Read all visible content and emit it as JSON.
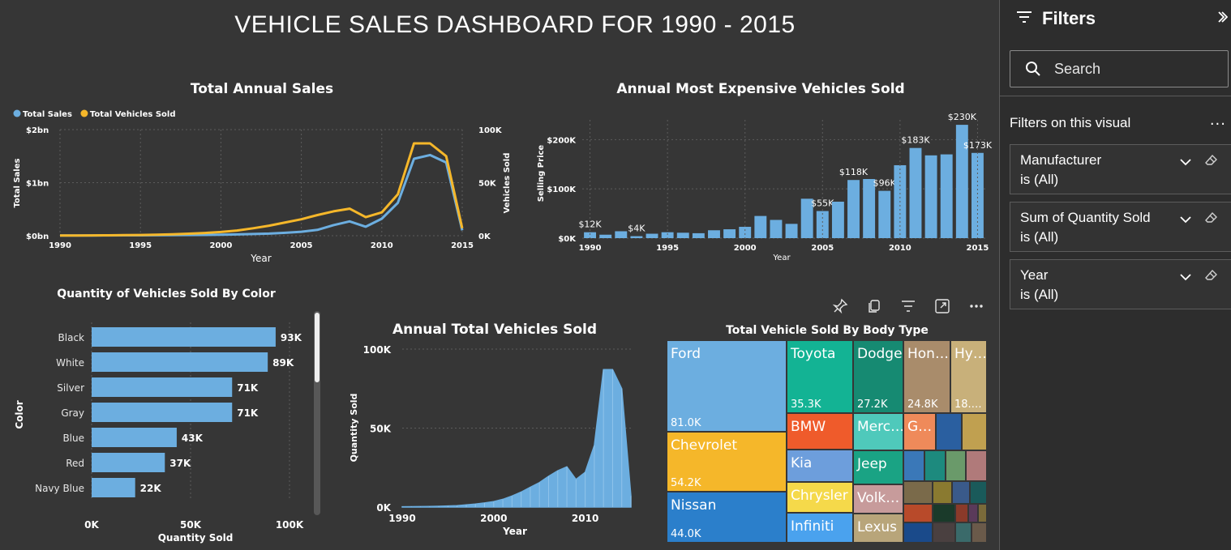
{
  "dashboard": {
    "title": "VEHICLE SALES DASHBOARD  FOR 1990 - 2015"
  },
  "filters_pane": {
    "title": "Filters",
    "search_placeholder": "Search",
    "section_label": "Filters on this visual",
    "more_label": "...",
    "cards": [
      {
        "field": "Manufacturer",
        "value": "is (All)"
      },
      {
        "field": "Sum of Quantity Sold",
        "value": "is (All)"
      },
      {
        "field": "Year",
        "value": "is (All)"
      }
    ]
  },
  "icons": [
    "filter-lines-icon",
    "collapse-chevron-icon",
    "search-icon",
    "chevron-down-icon",
    "eraser-icon",
    "pin-icon",
    "copy-icon",
    "filter-icon",
    "focus-mode-icon",
    "more-options-icon"
  ],
  "colors": {
    "blue": "#6caee0",
    "orange": "#f5b72a",
    "background": "#363636",
    "pane": "#2d2d2d"
  },
  "chart_data": [
    {
      "id": "total_annual_sales",
      "type": "line",
      "title": "Total Annual Sales",
      "xlabel": "Year",
      "ylabel": "Total Sales",
      "y2label": "Vehicles Sold",
      "legend_position": "top-left",
      "xlim": [
        1990,
        2015
      ],
      "ylim": [
        0,
        2
      ],
      "y2lim": [
        0,
        100000
      ],
      "x_ticks": [
        "1990",
        "1995",
        "2000",
        "2005",
        "2010",
        "2015"
      ],
      "y_ticks": [
        "$0bn",
        "$1bn",
        "$2bn"
      ],
      "y2_ticks": [
        "0K",
        "50K",
        "100K"
      ],
      "x": [
        1990,
        1991,
        1992,
        1993,
        1994,
        1995,
        1996,
        1997,
        1998,
        1999,
        2000,
        2001,
        2002,
        2003,
        2004,
        2005,
        2006,
        2007,
        2008,
        2009,
        2010,
        2011,
        2012,
        2013,
        2014,
        2015
      ],
      "series": [
        {
          "name": "Total Sales",
          "axis": "left",
          "color": "#6caee0",
          "values": [
            0.005,
            0.005,
            0.005,
            0.006,
            0.007,
            0.008,
            0.009,
            0.011,
            0.013,
            0.016,
            0.02,
            0.025,
            0.032,
            0.04,
            0.055,
            0.075,
            0.11,
            0.2,
            0.27,
            0.17,
            0.32,
            0.62,
            1.45,
            1.52,
            1.38,
            0.1
          ]
        },
        {
          "name": "Total Vehicles Sold",
          "axis": "right",
          "color": "#f5b72a",
          "values": [
            200,
            250,
            300,
            400,
            500,
            700,
            900,
            1400,
            1900,
            2600,
            3500,
            4900,
            7000,
            9500,
            12500,
            15500,
            19500,
            23000,
            25500,
            17500,
            22000,
            39000,
            87000,
            87000,
            75000,
            7000
          ]
        }
      ]
    },
    {
      "id": "annual_most_expensive",
      "type": "bar",
      "title": "Annual Most Expensive Vehicles Sold",
      "xlabel": "Year",
      "ylabel": "Selling Price",
      "ylim": [
        0,
        240000
      ],
      "y_ticks": [
        "$0K",
        "$100K",
        "$200K"
      ],
      "x_ticks": [
        "1990",
        "1995",
        "2000",
        "2005",
        "2010",
        "2015"
      ],
      "color": "#6caee0",
      "categories": [
        "1990",
        "1991",
        "1992",
        "1993",
        "1994",
        "1995",
        "1996",
        "1997",
        "1998",
        "1999",
        "2000",
        "2001",
        "2002",
        "2003",
        "2004",
        "2005",
        "2006",
        "2007",
        "2008",
        "2009",
        "2010",
        "2011",
        "2012",
        "2013",
        "2014",
        "2015"
      ],
      "values": [
        12000,
        7000,
        14000,
        4000,
        9000,
        12000,
        11000,
        10000,
        16000,
        18000,
        23000,
        45000,
        37000,
        29000,
        80000,
        55000,
        74000,
        118000,
        120000,
        96000,
        148000,
        183000,
        168000,
        170000,
        230000,
        173000
      ],
      "data_labels": {
        "1990": "$12K",
        "1993": "$4K",
        "2005": "$55K",
        "2007": "$118K",
        "2009": "$96K",
        "2011": "$183K",
        "2014": "$230K",
        "2015": "$173K"
      }
    },
    {
      "id": "sold_by_color",
      "type": "bar",
      "orientation": "horizontal",
      "title": "Quantity of Vehicles Sold By Color",
      "xlabel": "Quantity Sold",
      "ylabel": "Color",
      "xlim": [
        0,
        100000
      ],
      "x_ticks": [
        "0K",
        "50K",
        "100K"
      ],
      "color": "#6caee0",
      "categories": [
        "Black",
        "White",
        "Silver",
        "Gray",
        "Blue",
        "Red",
        "Navy Blue"
      ],
      "values": [
        93000,
        89000,
        71000,
        71000,
        43000,
        37000,
        22000
      ],
      "data_labels": [
        "93K",
        "89K",
        "71K",
        "71K",
        "43K",
        "37K",
        "22K"
      ]
    },
    {
      "id": "annual_total_vehicles",
      "type": "area",
      "title": "Annual Total Vehicles Sold",
      "xlabel": "Year",
      "ylabel": "Quantity Sold",
      "xlim": [
        1990,
        2015
      ],
      "ylim": [
        0,
        100000
      ],
      "y_ticks": [
        "0K",
        "50K",
        "100K"
      ],
      "x_ticks": [
        "1990",
        "2000",
        "2010"
      ],
      "color": "#6caee0",
      "x": [
        1990,
        1991,
        1992,
        1993,
        1994,
        1995,
        1996,
        1997,
        1998,
        1999,
        2000,
        2001,
        2002,
        2003,
        2004,
        2005,
        2006,
        2007,
        2008,
        2009,
        2010,
        2011,
        2012,
        2013,
        2014,
        2015
      ],
      "values": [
        200,
        250,
        300,
        400,
        500,
        700,
        900,
        1400,
        1900,
        2600,
        3500,
        4900,
        7000,
        9500,
        12500,
        15500,
        19500,
        23000,
        25500,
        17500,
        22000,
        39000,
        87000,
        87000,
        75000,
        7000
      ]
    },
    {
      "id": "sold_by_body_type",
      "type": "treemap",
      "title": "Total Vehicle Sold By Body Type",
      "items": [
        {
          "name": "Ford",
          "value": "81.0K",
          "color": "#6caee0"
        },
        {
          "name": "Chevrolet",
          "value": "54.2K",
          "color": "#f5b72a"
        },
        {
          "name": "Nissan",
          "value": "44.0K",
          "color": "#2b7fcb"
        },
        {
          "name": "Toyota",
          "value": "35.3K",
          "color": "#13b394"
        },
        {
          "name": "Dodge",
          "value": "27.2K",
          "color": "#168a72"
        },
        {
          "name": "Hon…",
          "value": "24.8K",
          "color": "#a98c6b"
        },
        {
          "name": "Hy…",
          "value": "18.…",
          "color": "#c8b07a"
        },
        {
          "name": "BMW",
          "value": "",
          "color": "#ef5b2b"
        },
        {
          "name": "Merc…",
          "value": "",
          "color": "#4fc9bb"
        },
        {
          "name": "G…",
          "value": "",
          "color": "#ef8a5a"
        },
        {
          "name": "Kia",
          "value": "",
          "color": "#6d9edc"
        },
        {
          "name": "Jeep",
          "value": "",
          "color": "#1aa384"
        },
        {
          "name": "Chrysler",
          "value": "",
          "color": "#f5d94a"
        },
        {
          "name": "Volk…",
          "value": "",
          "color": "#c79b9b"
        },
        {
          "name": "Infiniti",
          "value": "",
          "color": "#4aa2ee"
        },
        {
          "name": "Lexus",
          "value": "",
          "color": "#b8a57a"
        }
      ]
    }
  ]
}
